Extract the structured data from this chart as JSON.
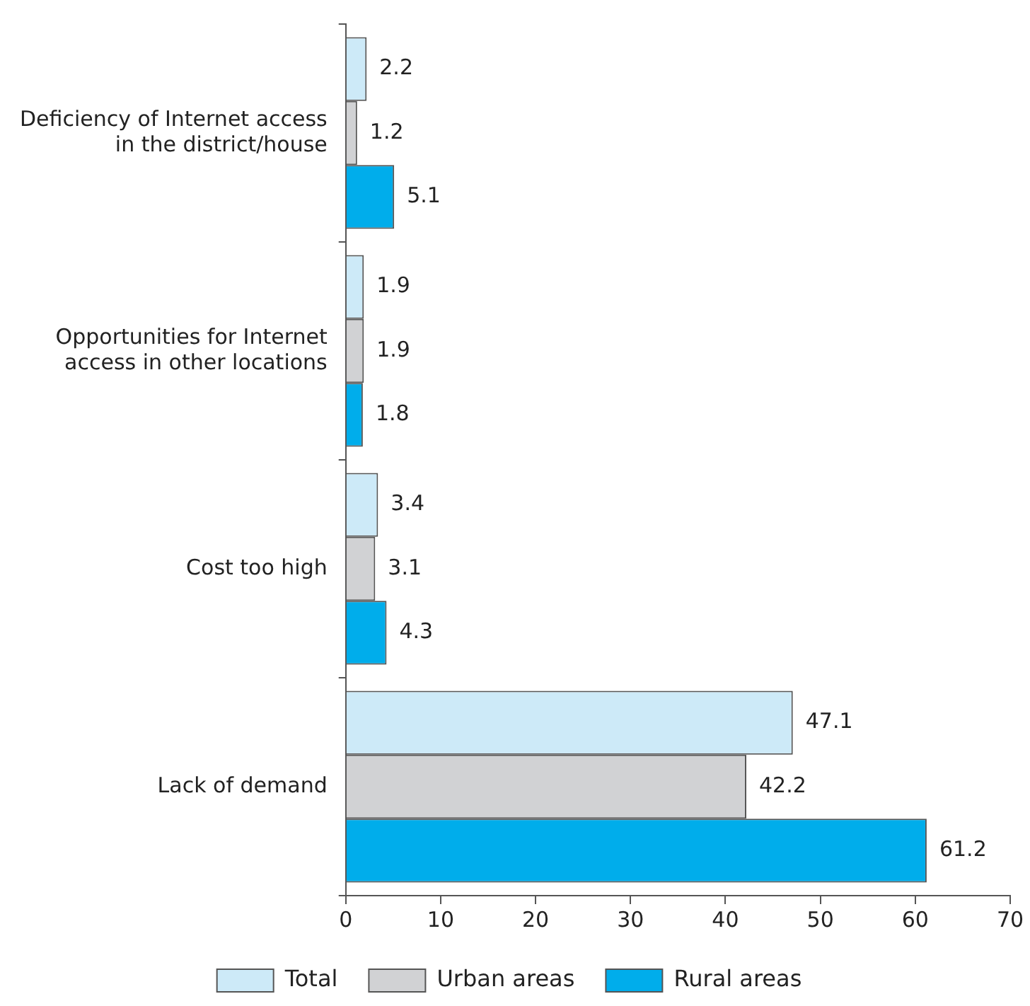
{
  "chart_data": {
    "type": "bar",
    "orientation": "horizontal",
    "categories": [
      "Deficiency of Internet access in the district/house",
      "Opportunities for Internet access in other locations",
      "Cost too high",
      "Lack of demand"
    ],
    "series": [
      {
        "name": "Total",
        "color": "#cdeaf8",
        "values": [
          2.2,
          1.9,
          3.4,
          47.1
        ]
      },
      {
        "name": "Urban areas",
        "color": "#d1d2d4",
        "values": [
          1.2,
          1.9,
          3.1,
          42.2
        ]
      },
      {
        "name": "Rural areas",
        "color": "#00adeb",
        "values": [
          5.1,
          1.8,
          4.3,
          61.2
        ]
      }
    ],
    "xlim": [
      0,
      70
    ],
    "xticks": [
      0,
      10,
      20,
      30,
      40,
      50,
      60,
      70
    ],
    "grid": false,
    "legend": "bottom",
    "data_labels": true
  }
}
